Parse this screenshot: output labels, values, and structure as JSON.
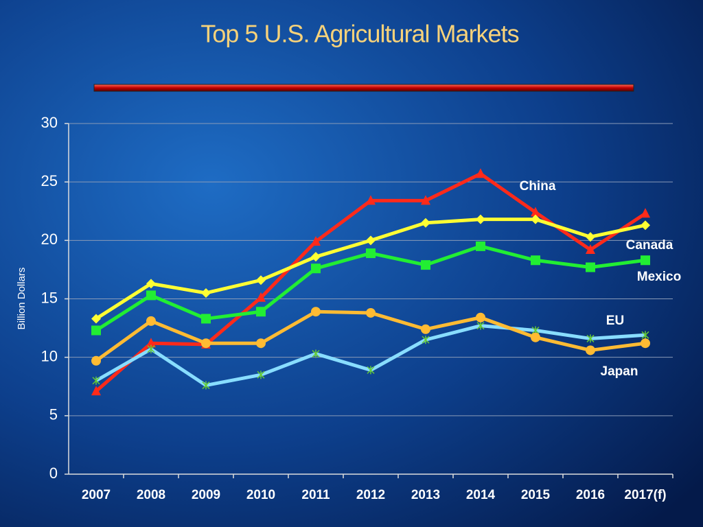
{
  "chart_data": {
    "type": "line",
    "title": "Top 5 U.S. Agricultural Markets",
    "y_label": "Billion Dollars",
    "categories": [
      "2007",
      "2008",
      "2009",
      "2010",
      "2011",
      "2012",
      "2013",
      "2014",
      "2015",
      "2016",
      "2017(f)"
    ],
    "ylim": [
      0,
      30
    ],
    "yticks": [
      0,
      5,
      10,
      15,
      20,
      25,
      30
    ],
    "grid": true,
    "series": [
      {
        "name": "China",
        "color": "#ff2a1a",
        "marker": "triangle",
        "values": [
          7.1,
          11.2,
          11.1,
          15.1,
          19.9,
          23.4,
          23.4,
          25.7,
          22.4,
          19.2,
          22.3
        ]
      },
      {
        "name": "Canada",
        "color": "#ffff33",
        "marker": "diamond",
        "values": [
          13.3,
          16.3,
          15.5,
          16.6,
          18.6,
          20.0,
          21.5,
          21.8,
          21.8,
          20.3,
          21.3
        ]
      },
      {
        "name": "Mexico",
        "color": "#22ee33",
        "marker": "square",
        "values": [
          12.3,
          15.3,
          13.3,
          13.9,
          17.6,
          18.9,
          17.9,
          19.5,
          18.3,
          17.7,
          18.3
        ]
      },
      {
        "name": "EU",
        "color": "#88ddff",
        "marker": "star",
        "values": [
          8.0,
          10.7,
          7.6,
          8.5,
          10.3,
          8.9,
          11.5,
          12.7,
          12.3,
          11.6,
          11.9
        ]
      },
      {
        "name": "Japan",
        "color": "#ffbb33",
        "marker": "circle",
        "values": [
          9.7,
          13.1,
          11.2,
          11.2,
          13.9,
          13.8,
          12.4,
          13.4,
          11.7,
          10.6,
          11.2
        ]
      }
    ]
  }
}
